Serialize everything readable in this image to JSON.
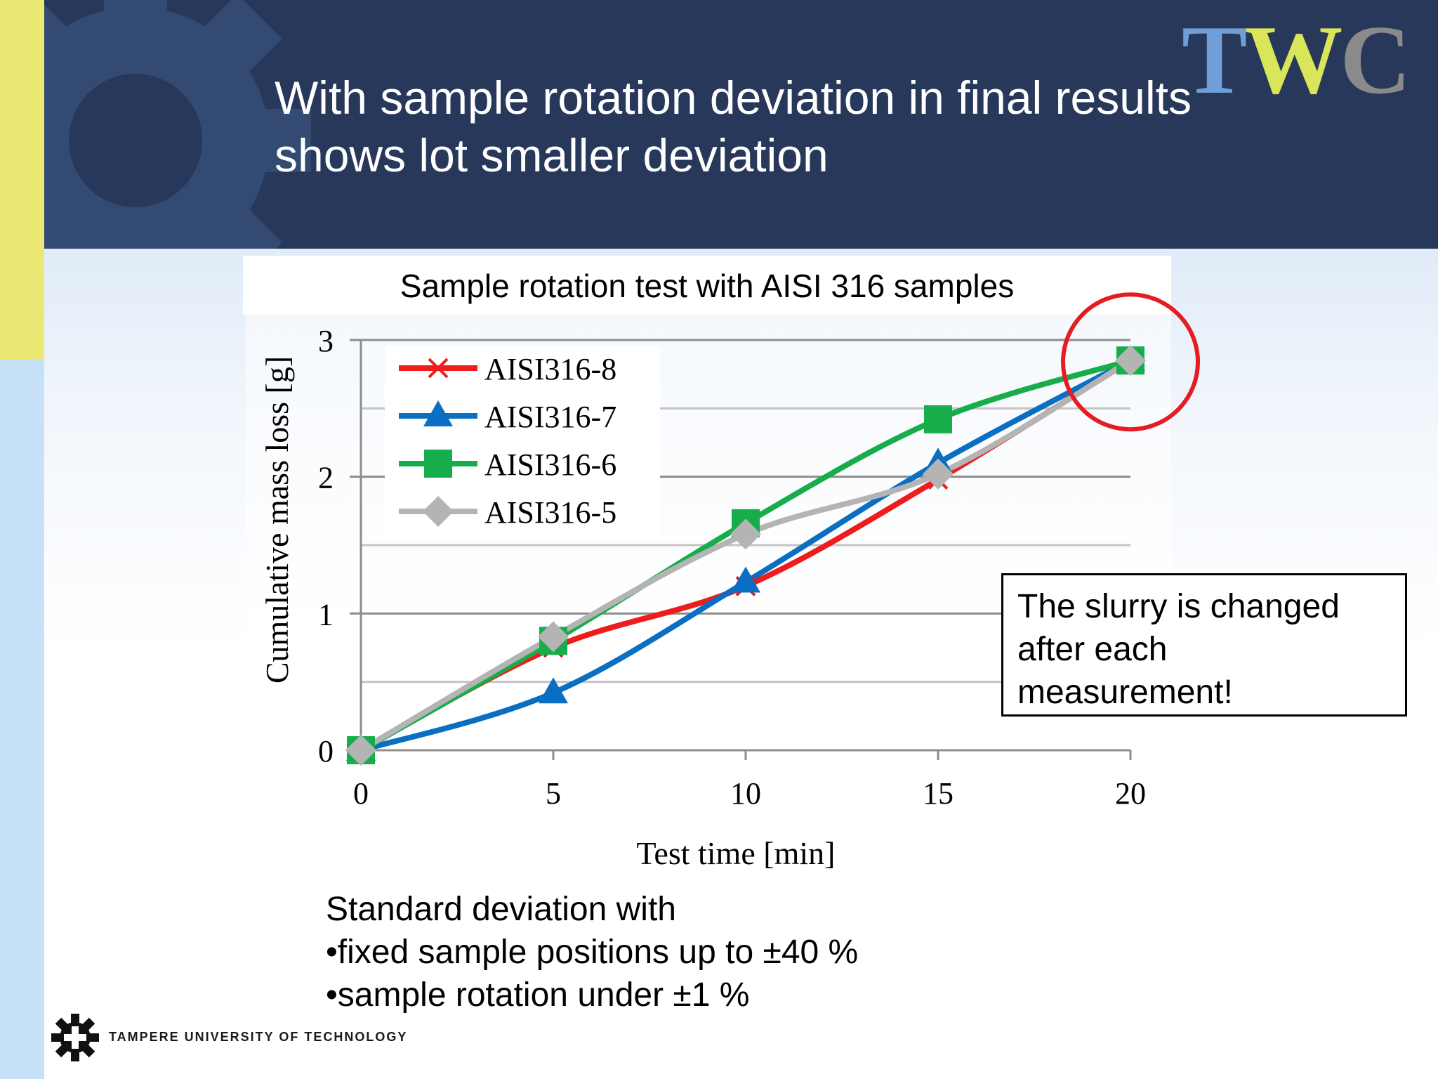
{
  "slide": {
    "title_line1": "With sample rotation deviation in final results",
    "title_line2": "shows lot smaller deviation",
    "logo_letters": [
      "T",
      "W",
      "C"
    ],
    "logo_colors": [
      "#6f9fd6",
      "#d9e65a",
      "#8a8a8a"
    ],
    "callout_lines": [
      "The slurry is changed",
      "after each",
      "measurement!"
    ],
    "notes": [
      "Standard deviation with",
      "•fixed sample positions up to ±40 %",
      "•sample rotation under ±1 %"
    ],
    "university": "TAMPERE UNIVERSITY OF TECHNOLOGY",
    "university_icon": "gear-icon"
  },
  "chart_data": {
    "type": "line",
    "title": "Sample rotation test with AISI 316 samples",
    "xlabel": "Test time [min]",
    "ylabel": "Cumulative mass loss [g]",
    "x": [
      0,
      5,
      10,
      15,
      20
    ],
    "xlim": [
      0,
      20
    ],
    "ylim": [
      0,
      3
    ],
    "xticks": [
      0,
      5,
      10,
      15,
      20
    ],
    "yticks": [
      0,
      1,
      2,
      3
    ],
    "grid": "horizontal",
    "legend_position": "top-left",
    "series": [
      {
        "name": "AISI316-8",
        "values": [
          0,
          0.75,
          1.2,
          1.98,
          2.85
        ],
        "color": "#ee1c1c",
        "marker": "x"
      },
      {
        "name": "AISI316-7",
        "values": [
          0,
          0.42,
          1.23,
          2.1,
          2.85
        ],
        "color": "#0a6fc2",
        "marker": "triangle"
      },
      {
        "name": "AISI316-6",
        "values": [
          0,
          0.8,
          1.66,
          2.42,
          2.85
        ],
        "color": "#18ad4b",
        "marker": "square"
      },
      {
        "name": "AISI316-5",
        "values": [
          0,
          0.83,
          1.58,
          2.02,
          2.85
        ],
        "color": "#b4b4b4",
        "marker": "diamond"
      }
    ],
    "highlight": {
      "x": 20,
      "y": 2.85,
      "color": "#e51c23"
    }
  }
}
